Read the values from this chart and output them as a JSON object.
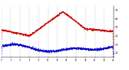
{
  "bg_color": "#ffffff",
  "grid_color": "#888888",
  "temp_color": "#cc0000",
  "dew_color": "#0000cc",
  "ylim": [
    15,
    75
  ],
  "yticks": [
    20,
    30,
    40,
    50,
    60,
    70
  ],
  "xlim": [
    0,
    1440
  ],
  "n_points": 1440,
  "fig_width": 1.6,
  "fig_height": 0.87,
  "dpi": 100
}
